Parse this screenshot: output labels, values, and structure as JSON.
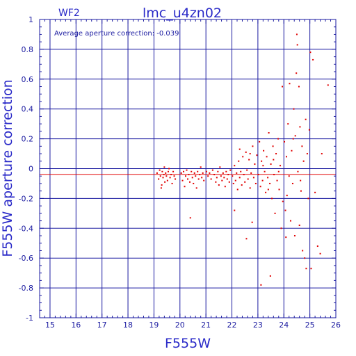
{
  "chart_data": {
    "type": "scatter",
    "title": "lmc_u4zn02",
    "chip_label": "WF2",
    "annotation": "Average aperture correction: -0.039",
    "xlabel": "F555W",
    "ylabel": "F555W aperture correction",
    "xlim": [
      14.6,
      26
    ],
    "ylim": [
      -1,
      1
    ],
    "x_ticks": [
      15,
      16,
      17,
      18,
      19,
      20,
      21,
      22,
      23,
      24,
      25,
      26
    ],
    "y_ticks": [
      -1,
      -0.8,
      -0.6,
      -0.4,
      -0.2,
      0,
      0.2,
      0.4,
      0.6,
      0.8,
      1
    ],
    "y_tick_labels": [
      "-1",
      "-0.8",
      "-0.6",
      "-0.4",
      "-0.2",
      "0",
      "0.2",
      "0.4",
      "0.6",
      "0.8",
      "1"
    ],
    "grid": true,
    "reference_lines": [
      0,
      -0.039
    ],
    "colors": {
      "frame": "#1a1aa0",
      "points": "#e00000",
      "mean_line": "#e00000",
      "axis_text": "#2a2ac8"
    },
    "series": [
      {
        "values": [
          [
            19.12,
            -0.03
          ],
          [
            19.18,
            -0.07
          ],
          [
            19.22,
            -0.01
          ],
          [
            19.25,
            -0.05
          ],
          [
            19.28,
            -0.13
          ],
          [
            19.32,
            -0.02
          ],
          [
            19.35,
            -0.06
          ],
          [
            19.38,
            -0.04
          ],
          [
            19.42,
            -0.09
          ],
          [
            19.45,
            -0.03
          ],
          [
            19.48,
            -0.05
          ],
          [
            19.52,
            -0.08
          ],
          [
            19.55,
            -0.02
          ],
          [
            19.58,
            0.0
          ],
          [
            19.62,
            -0.06
          ],
          [
            19.66,
            -0.04
          ],
          [
            19.7,
            -0.1
          ],
          [
            19.74,
            -0.02
          ],
          [
            19.78,
            -0.05
          ],
          [
            19.82,
            -0.07
          ],
          [
            19.3,
            -0.11
          ],
          [
            19.4,
            0.01
          ],
          [
            20.05,
            -0.03
          ],
          [
            20.1,
            -0.08
          ],
          [
            20.14,
            -0.02
          ],
          [
            20.18,
            -0.12
          ],
          [
            20.22,
            -0.05
          ],
          [
            20.26,
            -0.01
          ],
          [
            20.3,
            -0.07
          ],
          [
            20.34,
            -0.04
          ],
          [
            20.38,
            -0.09
          ],
          [
            20.4,
            -0.33
          ],
          [
            20.44,
            -0.02
          ],
          [
            20.48,
            -0.06
          ],
          [
            20.52,
            -0.1
          ],
          [
            20.56,
            -0.03
          ],
          [
            20.6,
            -0.05
          ],
          [
            20.64,
            -0.13
          ],
          [
            20.68,
            -0.02
          ],
          [
            20.72,
            -0.07
          ],
          [
            20.76,
            -0.04
          ],
          [
            20.8,
            0.01
          ],
          [
            20.84,
            -0.06
          ],
          [
            20.88,
            -0.03
          ],
          [
            20.92,
            -0.08
          ],
          [
            21.02,
            -0.02
          ],
          [
            21.08,
            -0.05
          ],
          [
            21.14,
            -0.03
          ],
          [
            21.2,
            -0.07
          ],
          [
            21.26,
            -0.01
          ],
          [
            21.32,
            -0.04
          ],
          [
            21.38,
            -0.09
          ],
          [
            21.42,
            -0.06
          ],
          [
            21.46,
            -0.02
          ],
          [
            21.5,
            -0.11
          ],
          [
            21.54,
            0.01
          ],
          [
            21.58,
            -0.05
          ],
          [
            21.62,
            -0.08
          ],
          [
            21.66,
            -0.03
          ],
          [
            21.7,
            -0.06
          ],
          [
            21.74,
            -0.12
          ],
          [
            21.78,
            -0.02
          ],
          [
            21.82,
            -0.07
          ],
          [
            21.86,
            -0.04
          ],
          [
            21.9,
            -0.09
          ],
          [
            21.94,
            -0.01
          ],
          [
            22.02,
            -0.05
          ],
          [
            22.06,
            -0.1
          ],
          [
            22.1,
            0.02
          ],
          [
            22.14,
            -0.08
          ],
          [
            22.18,
            -0.03
          ],
          [
            22.22,
            -0.14
          ],
          [
            22.26,
            0.05
          ],
          [
            22.3,
            -0.06
          ],
          [
            22.34,
            -0.02
          ],
          [
            22.38,
            -0.11
          ],
          [
            22.42,
            0.08
          ],
          [
            22.46,
            -0.04
          ],
          [
            22.5,
            -0.09
          ],
          [
            22.54,
            0.11
          ],
          [
            22.56,
            -0.47
          ],
          [
            22.58,
            -0.01
          ],
          [
            22.62,
            -0.07
          ],
          [
            22.66,
            0.06
          ],
          [
            22.7,
            -0.13
          ],
          [
            22.74,
            -0.03
          ],
          [
            22.78,
            -0.36
          ],
          [
            22.8,
            0.15
          ],
          [
            22.84,
            -0.06
          ],
          [
            22.88,
            0.03
          ],
          [
            22.92,
            -0.1
          ],
          [
            22.96,
            0.09
          ],
          [
            22.1,
            -0.28
          ],
          [
            22.3,
            0.13
          ],
          [
            22.7,
            0.1
          ],
          [
            23.02,
            -0.04
          ],
          [
            23.06,
            0.18
          ],
          [
            23.1,
            -0.12
          ],
          [
            23.12,
            -0.78
          ],
          [
            23.14,
            0.05
          ],
          [
            23.18,
            -0.08
          ],
          [
            23.22,
            0.12
          ],
          [
            23.26,
            -0.02
          ],
          [
            23.3,
            -0.16
          ],
          [
            23.34,
            0.08
          ],
          [
            23.38,
            -0.06
          ],
          [
            23.42,
            0.24
          ],
          [
            23.46,
            -0.1
          ],
          [
            23.48,
            -0.72
          ],
          [
            23.5,
            0.03
          ],
          [
            23.54,
            -0.2
          ],
          [
            23.58,
            0.15
          ],
          [
            23.62,
            -0.04
          ],
          [
            23.66,
            -0.3
          ],
          [
            23.7,
            0.1
          ],
          [
            23.74,
            -0.08
          ],
          [
            23.78,
            0.2
          ],
          [
            23.82,
            -0.14
          ],
          [
            23.86,
            0.02
          ],
          [
            23.9,
            -0.4
          ],
          [
            23.94,
            0.55
          ],
          [
            23.96,
            -0.22
          ],
          [
            23.2,
            0.02
          ],
          [
            23.4,
            -0.14
          ],
          [
            23.6,
            0.06
          ],
          [
            23.8,
            -0.02
          ],
          [
            24.02,
            0.18
          ],
          [
            24.06,
            -0.28
          ],
          [
            24.1,
            0.08
          ],
          [
            24.12,
            -0.18
          ],
          [
            24.16,
            0.3
          ],
          [
            24.2,
            -0.05
          ],
          [
            24.22,
            0.57
          ],
          [
            24.26,
            -0.35
          ],
          [
            24.3,
            0.12
          ],
          [
            24.34,
            -0.1
          ],
          [
            24.38,
            0.4
          ],
          [
            24.42,
            -0.45
          ],
          [
            24.44,
            0.22
          ],
          [
            24.48,
            0.64
          ],
          [
            24.5,
            0.9
          ],
          [
            24.52,
            0.83
          ],
          [
            24.54,
            -0.02
          ],
          [
            24.58,
            0.55
          ],
          [
            24.6,
            -0.38
          ],
          [
            24.62,
            0.28
          ],
          [
            24.66,
            -0.15
          ],
          [
            24.7,
            0.15
          ],
          [
            24.72,
            -0.55
          ],
          [
            24.76,
            0.05
          ],
          [
            24.8,
            -0.6
          ],
          [
            24.84,
            0.33
          ],
          [
            24.86,
            -0.67
          ],
          [
            24.9,
            0.1
          ],
          [
            24.94,
            -0.2
          ],
          [
            24.98,
            0.26
          ],
          [
            24.08,
            -0.46
          ],
          [
            24.36,
            0.2
          ],
          [
            24.64,
            -0.08
          ],
          [
            25.02,
            0.78
          ],
          [
            25.05,
            -0.67
          ],
          [
            25.12,
            0.73
          ],
          [
            25.2,
            -0.16
          ],
          [
            25.3,
            -0.52
          ],
          [
            25.4,
            -0.57
          ],
          [
            25.46,
            0.1
          ],
          [
            25.7,
            0.56
          ]
        ]
      }
    ]
  }
}
